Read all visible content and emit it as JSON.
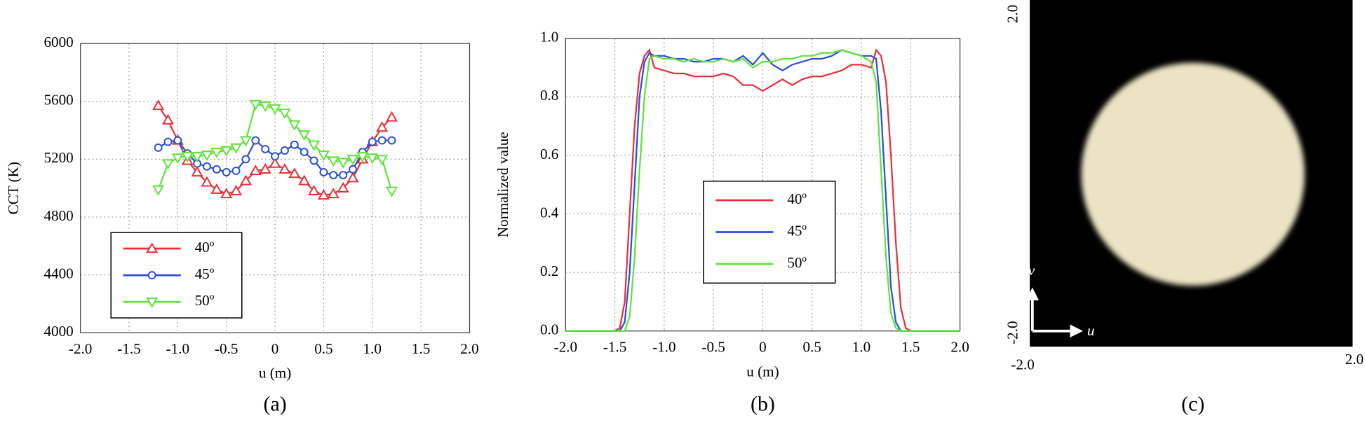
{
  "chart_data": [
    {
      "type": "line",
      "caption": "(a)",
      "ylabel": "CCT (K)",
      "xlabel": "u (m)",
      "xlim": [
        -2,
        2
      ],
      "ylim": [
        4000,
        6000
      ],
      "grid": true,
      "legend": "lower left",
      "xticks": [
        {
          "value": -2,
          "label": "-2.0"
        },
        -1.5,
        {
          "value": -1,
          "label": "-1.0"
        },
        -0.5,
        0,
        0.5,
        {
          "value": 1,
          "label": "1.0"
        },
        1.5,
        {
          "value": 2,
          "label": "2.0"
        }
      ],
      "yticks": [
        4000,
        4400,
        4800,
        5200,
        5600,
        6000
      ],
      "x": [
        -1.2,
        -1.1,
        -1.0,
        -0.9,
        -0.8,
        -0.7,
        -0.6,
        -0.5,
        -0.4,
        -0.3,
        -0.2,
        -0.1,
        0,
        0.1,
        0.2,
        0.3,
        0.4,
        0.5,
        0.6,
        0.7,
        0.8,
        0.9,
        1.0,
        1.1,
        1.2
      ],
      "series": [
        {
          "name": "40º",
          "color": "#e8303a",
          "marker": "triangle-up",
          "values": [
            5570,
            5470,
            5330,
            5190,
            5110,
            5040,
            4990,
            4960,
            4980,
            5050,
            5120,
            5130,
            5170,
            5130,
            5100,
            5050,
            4980,
            4950,
            4960,
            5000,
            5070,
            5200,
            5320,
            5420,
            5490
          ]
        },
        {
          "name": "45º",
          "color": "#2b4fd8",
          "marker": "circle",
          "values": [
            5280,
            5320,
            5330,
            5240,
            5170,
            5150,
            5130,
            5110,
            5120,
            5200,
            5330,
            5270,
            5220,
            5260,
            5300,
            5250,
            5190,
            5110,
            5090,
            5090,
            5130,
            5250,
            5320,
            5330,
            5330
          ]
        },
        {
          "name": "50º",
          "color": "#5ee33a",
          "marker": "triangle-down",
          "values": [
            4990,
            5170,
            5210,
            5220,
            5220,
            5230,
            5250,
            5260,
            5280,
            5330,
            5580,
            5570,
            5550,
            5520,
            5440,
            5370,
            5300,
            5230,
            5190,
            5180,
            5200,
            5220,
            5210,
            5200,
            4980
          ]
        }
      ]
    },
    {
      "type": "line",
      "caption": "(b)",
      "ylabel": "Normalized value",
      "xlabel": "u (m)",
      "xlim": [
        -2,
        2
      ],
      "ylim": [
        0,
        1
      ],
      "grid": true,
      "legend": "center",
      "xticks": [
        {
          "value": -2,
          "label": "-2.0"
        },
        -1.5,
        {
          "value": -1,
          "label": "-1.0"
        },
        -0.5,
        0,
        0.5,
        {
          "value": 1,
          "label": "1.0"
        },
        1.5,
        {
          "value": 2,
          "label": "2.0"
        }
      ],
      "yticks": [
        {
          "value": 0,
          "label": "0.0"
        },
        0.2,
        0.4,
        0.6,
        0.8,
        {
          "value": 1,
          "label": "1.0"
        }
      ],
      "x": [
        -2.0,
        -1.5,
        -1.45,
        -1.4,
        -1.35,
        -1.3,
        -1.25,
        -1.2,
        -1.15,
        -1.1,
        -1.0,
        -0.9,
        -0.8,
        -0.7,
        -0.6,
        -0.5,
        -0.4,
        -0.3,
        -0.2,
        -0.1,
        0,
        0.1,
        0.2,
        0.3,
        0.4,
        0.5,
        0.6,
        0.7,
        0.8,
        0.9,
        1.0,
        1.1,
        1.15,
        1.2,
        1.25,
        1.3,
        1.35,
        1.4,
        1.45,
        1.5,
        2.0
      ],
      "series": [
        {
          "name": "40º",
          "color": "#e8303a",
          "values": [
            0,
            0,
            0.01,
            0.1,
            0.4,
            0.7,
            0.88,
            0.94,
            0.96,
            0.9,
            0.89,
            0.88,
            0.88,
            0.87,
            0.87,
            0.87,
            0.88,
            0.87,
            0.84,
            0.84,
            0.82,
            0.84,
            0.86,
            0.84,
            0.86,
            0.87,
            0.87,
            0.88,
            0.89,
            0.91,
            0.91,
            0.9,
            0.96,
            0.94,
            0.85,
            0.6,
            0.3,
            0.08,
            0.01,
            0,
            0
          ]
        },
        {
          "name": "45º",
          "color": "#2b4fd8",
          "values": [
            0,
            0,
            0,
            0.03,
            0.2,
            0.5,
            0.8,
            0.92,
            0.95,
            0.94,
            0.94,
            0.93,
            0.93,
            0.92,
            0.92,
            0.93,
            0.93,
            0.92,
            0.94,
            0.91,
            0.95,
            0.91,
            0.89,
            0.91,
            0.92,
            0.93,
            0.93,
            0.94,
            0.96,
            0.95,
            0.94,
            0.94,
            0.93,
            0.75,
            0.45,
            0.15,
            0.03,
            0,
            0,
            0,
            0
          ]
        },
        {
          "name": "50º",
          "color": "#5ee33a",
          "values": [
            0,
            0,
            0,
            0,
            0.05,
            0.25,
            0.55,
            0.8,
            0.93,
            0.94,
            0.93,
            0.93,
            0.92,
            0.93,
            0.92,
            0.92,
            0.93,
            0.92,
            0.93,
            0.9,
            0.92,
            0.92,
            0.93,
            0.93,
            0.94,
            0.94,
            0.95,
            0.95,
            0.96,
            0.95,
            0.94,
            0.92,
            0.85,
            0.55,
            0.25,
            0.06,
            0.01,
            0,
            0,
            0,
            0
          ]
        }
      ]
    }
  ],
  "image_panel": {
    "caption": "(c)",
    "v_top": "2.0",
    "v_bottom": "-2.0",
    "u_left": "-2.0",
    "u_right": "2.0",
    "v_axis": "v",
    "u_axis": "u"
  }
}
